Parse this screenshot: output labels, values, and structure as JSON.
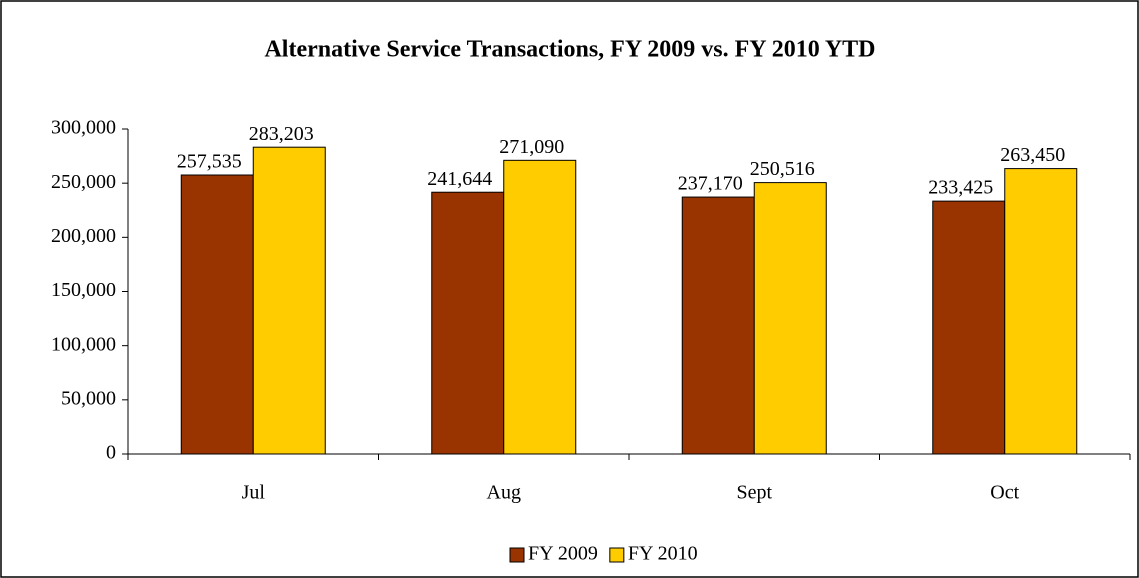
{
  "chart_data": {
    "type": "bar",
    "title": "Alternative Service Transactions, FY 2009 vs. FY 2010 YTD",
    "categories": [
      "Jul",
      "Aug",
      "Sept",
      "Oct"
    ],
    "series": [
      {
        "name": "FY 2009",
        "color": "#993300",
        "values": [
          257535,
          241644,
          237170,
          233425
        ],
        "value_labels": [
          "257,535",
          "241,644",
          "237,170",
          "233,425"
        ]
      },
      {
        "name": "FY 2010",
        "color": "#ffcc00",
        "values": [
          283203,
          271090,
          250516,
          263450
        ],
        "value_labels": [
          "283,203",
          "271,090",
          "250,516",
          "263,450"
        ]
      }
    ],
    "ylim": [
      0,
      300000
    ],
    "yticks": [
      0,
      {
        "value": 50000,
        "label": "50,000"
      },
      {
        "value": 100000,
        "label": "100,000"
      },
      {
        "value": 150000,
        "label": "150,000"
      },
      {
        "value": 200000,
        "label": "200,000"
      },
      {
        "value": 250000,
        "label": "250,000"
      },
      {
        "value": 300000,
        "label": "300,000"
      }
    ],
    "legend": "bottom"
  }
}
